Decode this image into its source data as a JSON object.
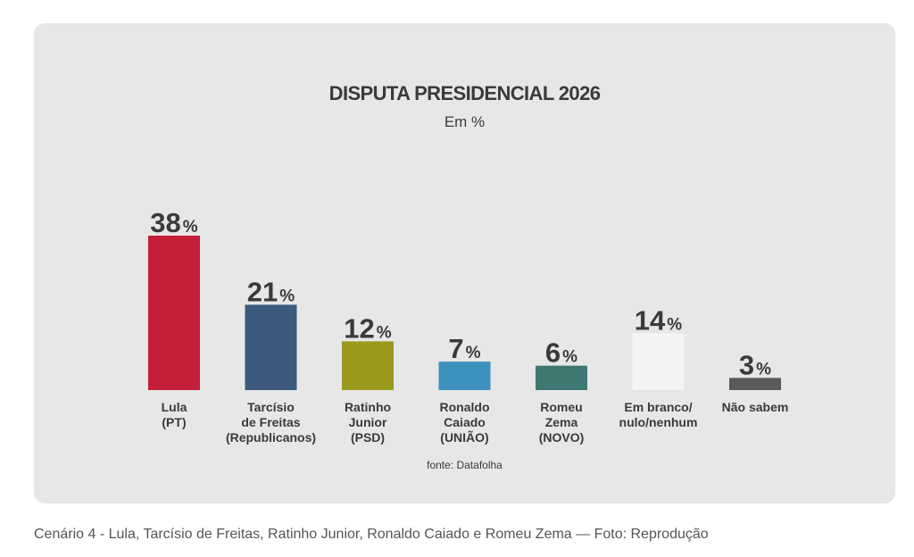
{
  "chart_data": {
    "type": "bar",
    "title": "DISPUTA PRESIDENCIAL 2026",
    "subtitle": "Em %",
    "unit": "%",
    "categories": [
      [
        "Lula",
        "(PT)"
      ],
      [
        "Tarcísio",
        "de Freitas",
        "(Republicanos)"
      ],
      [
        "Ratinho",
        "Junior",
        "(PSD)"
      ],
      [
        "Ronaldo",
        "Caiado",
        "(UNIÃO)"
      ],
      [
        "Romeu",
        "Zema",
        "(NOVO)"
      ],
      [
        "Em branco/",
        "nulo/nenhum"
      ],
      [
        "Não sabem"
      ]
    ],
    "values": [
      38,
      21,
      12,
      7,
      6,
      14,
      3
    ],
    "colors": [
      "#c41e3a",
      "#3b5a7e",
      "#9a9a1e",
      "#3d91bd",
      "#3f7773",
      "#f4f4f4",
      "#5a5a5a"
    ],
    "ylim": [
      0,
      38
    ],
    "source": "fonte: Datafolha"
  },
  "caption": "Cenário 4 - Lula, Tarcísio de Freitas, Ratinho Junior, Ronaldo Caiado e Romeu Zema — Foto: Reprodução"
}
